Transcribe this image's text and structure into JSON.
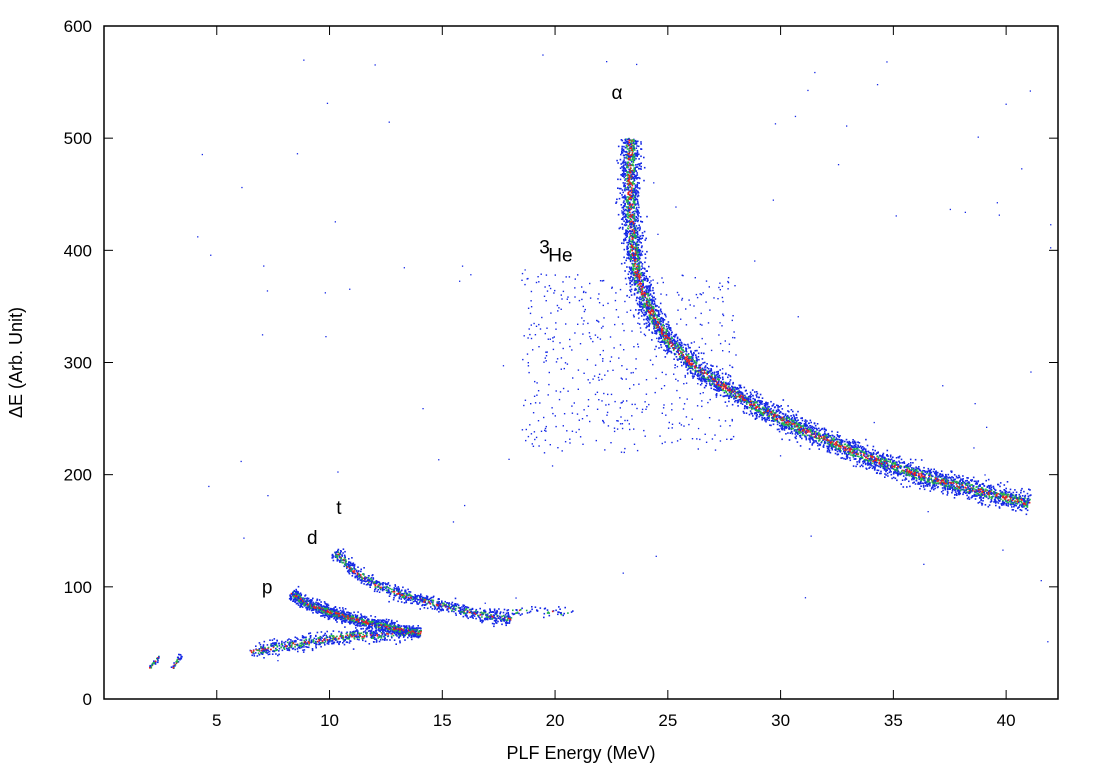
{
  "chart_data": {
    "type": "scatter",
    "title": "",
    "xlabel": "PLF Energy (MeV)",
    "ylabel": "ΔE (Arb. Unit)",
    "xlim": [
      0.0,
      42.3
    ],
    "ylim": [
      0,
      600
    ],
    "xticks": [
      5,
      10,
      15,
      20,
      25,
      30,
      35,
      40
    ],
    "yticks": [
      0,
      100,
      200,
      300,
      400,
      500,
      600
    ],
    "grid": false,
    "legend": "none",
    "colors": {
      "low": "#1428e6",
      "mid": "#22b14c",
      "high": "#e82020"
    },
    "annotations": [
      {
        "text": "α",
        "x": 22.5,
        "y": 535
      },
      {
        "text": "He",
        "sup": "3",
        "x": 19.3,
        "y": 390
      },
      {
        "text": "t",
        "x": 10.3,
        "y": 165
      },
      {
        "text": "d",
        "x": 9.0,
        "y": 138
      },
      {
        "text": "p",
        "x": 7.0,
        "y": 94
      }
    ],
    "bands": [
      {
        "name": "p",
        "kind": "curve",
        "x": [
          6.5,
          8.0,
          9.5,
          11.0,
          12.5,
          14.0
        ],
        "y": [
          43,
          48,
          53,
          57,
          58,
          60
        ],
        "width": 7,
        "count": 700,
        "intensity": 0.65
      },
      {
        "name": "d",
        "kind": "curve",
        "x": [
          8.3,
          9.0,
          10.0,
          11.0,
          12.0,
          13.0,
          14.0
        ],
        "y": [
          95,
          85,
          78,
          72,
          67,
          63,
          60
        ],
        "width": 6,
        "count": 1200,
        "intensity": 0.95
      },
      {
        "name": "t",
        "kind": "curve",
        "x": [
          10.2,
          11.0,
          12.0,
          13.0,
          14.0,
          15.0,
          16.0,
          17.0,
          18.0
        ],
        "y": [
          132,
          115,
          103,
          95,
          89,
          84,
          79,
          75,
          72
        ],
        "width": 6,
        "count": 900,
        "intensity": 0.65
      },
      {
        "name": "tail",
        "kind": "curve",
        "x": [
          17.0,
          18.5,
          21.0
        ],
        "y": [
          74,
          80,
          77
        ],
        "width": 5,
        "count": 80,
        "intensity": 0.1
      },
      {
        "name": "alpha",
        "kind": "curve",
        "x": [
          23.3,
          23.3,
          23.4,
          23.6,
          24.0,
          24.5,
          25.0,
          26.0,
          27.0,
          28.0,
          29.0,
          30.0,
          31.0,
          32.0,
          33.0,
          34.0,
          35.0,
          36.0,
          37.0,
          38.0,
          39.0,
          40.0,
          41.0
        ],
        "y": [
          500,
          450,
          410,
          380,
          355,
          335,
          320,
          300,
          285,
          272,
          260,
          250,
          240,
          232,
          223,
          215,
          208,
          201,
          195,
          190,
          185,
          180,
          175
        ],
        "width": 10,
        "count": 5000,
        "intensity": 0.8
      },
      {
        "name": "3He",
        "kind": "cloud",
        "xrange": [
          18.5,
          28.0
        ],
        "yrange": [
          220,
          380
        ],
        "count": 520,
        "intensity": 0.0
      },
      {
        "name": "low-energy-streak",
        "kind": "curve",
        "x": [
          2.0,
          2.4
        ],
        "y": [
          28,
          38
        ],
        "width": 2,
        "count": 35,
        "intensity": 0.9
      },
      {
        "name": "low-energy-streak-2",
        "kind": "curve",
        "x": [
          3.0,
          3.4
        ],
        "y": [
          28,
          40
        ],
        "width": 2,
        "count": 35,
        "intensity": 0.9
      }
    ]
  }
}
